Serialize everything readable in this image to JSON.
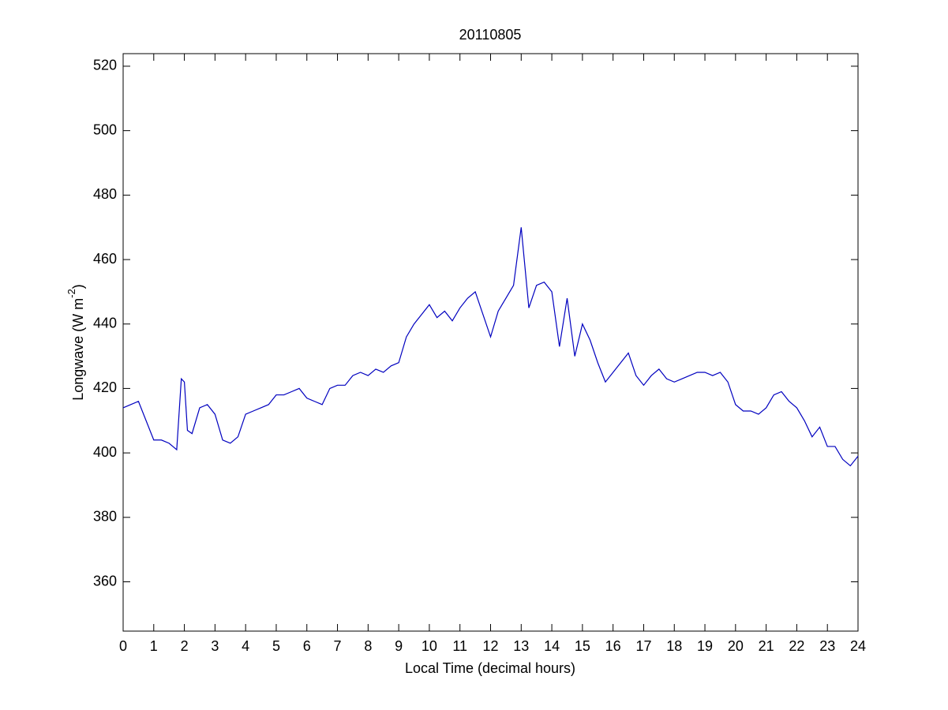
{
  "chart_data": {
    "type": "line",
    "title": "20110805",
    "x_label": "Local Time (decimal hours)",
    "y_label": "Longwave (W m",
    "y_label_sup": "-2",
    "y_label_end": ")",
    "x": [
      0,
      0.25,
      0.5,
      0.75,
      1.0,
      1.25,
      1.5,
      1.75,
      1.9,
      2.0,
      2.1,
      2.25,
      2.5,
      2.75,
      3.0,
      3.25,
      3.5,
      3.75,
      4.0,
      4.25,
      4.5,
      4.75,
      5.0,
      5.25,
      5.5,
      5.75,
      6.0,
      6.25,
      6.5,
      6.75,
      7.0,
      7.25,
      7.5,
      7.75,
      8.0,
      8.25,
      8.5,
      8.75,
      9.0,
      9.25,
      9.5,
      9.75,
      10.0,
      10.25,
      10.5,
      10.75,
      11.0,
      11.25,
      11.5,
      11.75,
      12.0,
      12.25,
      12.5,
      12.75,
      13.0,
      13.1,
      13.25,
      13.5,
      13.75,
      14.0,
      14.25,
      14.5,
      14.75,
      15.0,
      15.25,
      15.5,
      15.75,
      16.0,
      16.25,
      16.5,
      16.75,
      17.0,
      17.25,
      17.5,
      17.75,
      18.0,
      18.25,
      18.5,
      18.75,
      19.0,
      19.25,
      19.5,
      19.75,
      20.0,
      20.25,
      20.5,
      20.75,
      21.0,
      21.25,
      21.5,
      21.75,
      22.0,
      22.25,
      22.5,
      22.75,
      23.0,
      23.25,
      23.5,
      23.75,
      24.0
    ],
    "series": [
      {
        "color": "#0000bf",
        "values": [
          414,
          415,
          416,
          410,
          404,
          404,
          403,
          401,
          423,
          422,
          407,
          406,
          414,
          415,
          412,
          404,
          403,
          405,
          412,
          413,
          414,
          415,
          418,
          418,
          419,
          420,
          417,
          416,
          415,
          420,
          421,
          421,
          424,
          425,
          424,
          426,
          425,
          427,
          428,
          436,
          440,
          443,
          446,
          442,
          444,
          441,
          445,
          448,
          450,
          443,
          436,
          444,
          448,
          452,
          470,
          460,
          445,
          452,
          453,
          450,
          433,
          448,
          430,
          440,
          435,
          428,
          422,
          425,
          428,
          431,
          424,
          421,
          424,
          426,
          423,
          422,
          423,
          424,
          425,
          425,
          424,
          425,
          422,
          415,
          413,
          413,
          412,
          414,
          418,
          419,
          416,
          414,
          410,
          405,
          408,
          402,
          402,
          398,
          396,
          399
        ]
      }
    ],
    "xlim": [
      0,
      24
    ],
    "xticks": [
      0,
      1,
      2,
      3,
      4,
      5,
      6,
      7,
      8,
      9,
      10,
      11,
      12,
      13,
      14,
      15,
      16,
      17,
      18,
      19,
      20,
      21,
      22,
      23,
      24
    ],
    "ylim": [
      344.7,
      523.9
    ],
    "yticks": [
      360,
      380,
      400,
      420,
      440,
      460,
      480,
      500,
      520
    ]
  }
}
